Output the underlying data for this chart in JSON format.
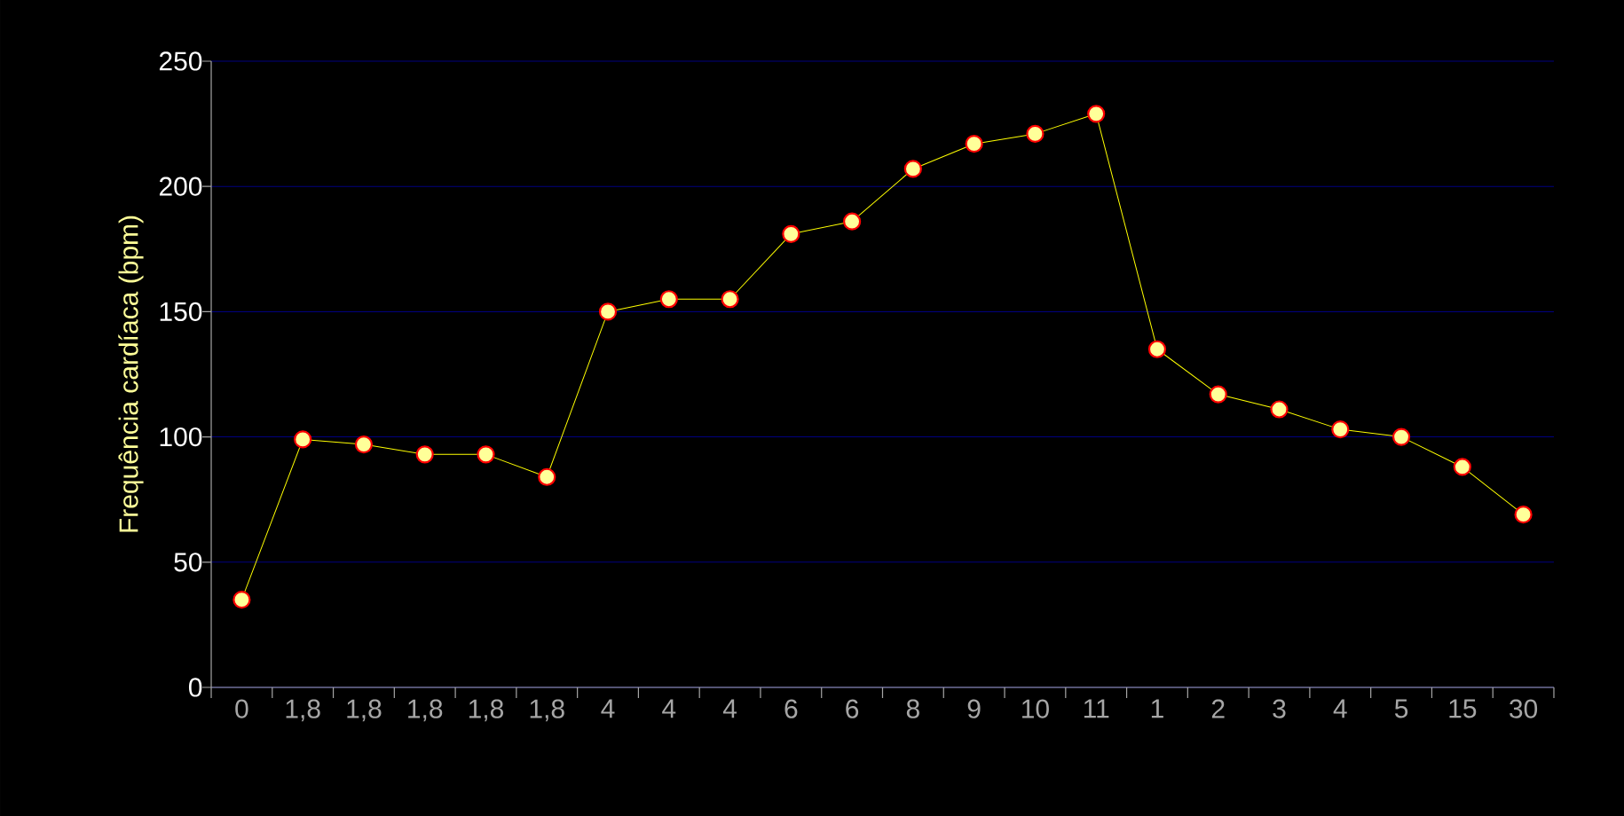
{
  "chart_data": {
    "type": "line",
    "ylabel": "Frequência cardíaca (bpm)",
    "categories": [
      "0",
      "1,8",
      "1,8",
      "1,8",
      "1,8",
      "1,8",
      "4",
      "4",
      "4",
      "6",
      "6",
      "8",
      "9",
      "10",
      "11",
      "1",
      "2",
      "3",
      "4",
      "5",
      "15",
      "30"
    ],
    "series": [
      {
        "color": "#ffff00",
        "values": [
          35,
          99,
          97,
          93,
          93,
          84,
          150,
          155,
          155,
          181,
          186,
          207,
          217,
          221,
          229,
          135,
          117,
          111,
          103,
          100,
          88,
          69
        ]
      }
    ],
    "ylim": [
      0,
      250
    ],
    "yticks": [
      0,
      50,
      100,
      150,
      200,
      250
    ],
    "grid": "y",
    "marker": "circle",
    "line_style": "solid"
  }
}
